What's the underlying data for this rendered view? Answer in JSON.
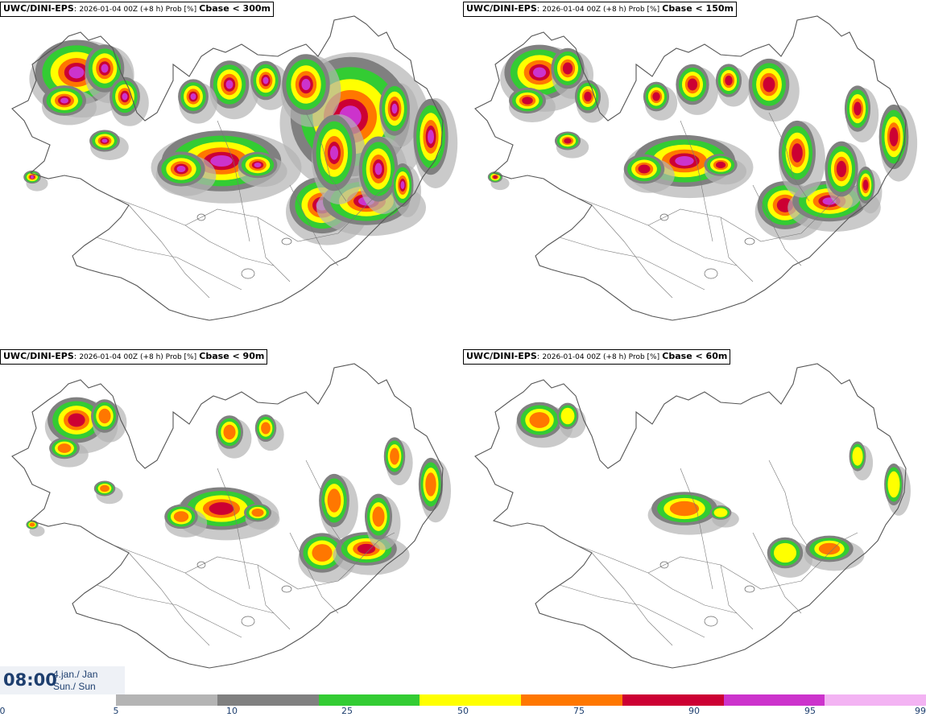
{
  "panels": [
    {
      "model": "UWC/DINI-EPS",
      "meta": "2026-01-04 00Z (+8 h) Prob [%]",
      "cbase": "Cbase < 300m",
      "level": 3
    },
    {
      "model": "UWC/DINI-EPS",
      "meta": "2026-01-04 00Z (+8 h) Prob [%]",
      "cbase": "Cbase < 150m",
      "level": 2
    },
    {
      "model": "UWC/DINI-EPS",
      "meta": "2026-01-04 00Z (+8 h) Prob [%]",
      "cbase": "Cbase < 90m",
      "level": 1
    },
    {
      "model": "UWC/DINI-EPS",
      "meta": "2026-01-04 00Z (+8 h) Prob [%]",
      "cbase": "Cbase < 60m",
      "level": 0
    }
  ],
  "valid_time": {
    "time": "08:00",
    "date_line1": "4.jan./ Jan",
    "date_line2": "Sun./ Sun"
  },
  "colorbar": {
    "colors": [
      "#b4b4b4",
      "#808080",
      "#33cc33",
      "#ffff00",
      "#ff7700",
      "#cc0033",
      "#cc33cc",
      "#f3b3f3"
    ],
    "ticks": [
      "0",
      "5",
      "10",
      "25",
      "50",
      "75",
      "90",
      "95",
      "99"
    ]
  }
}
